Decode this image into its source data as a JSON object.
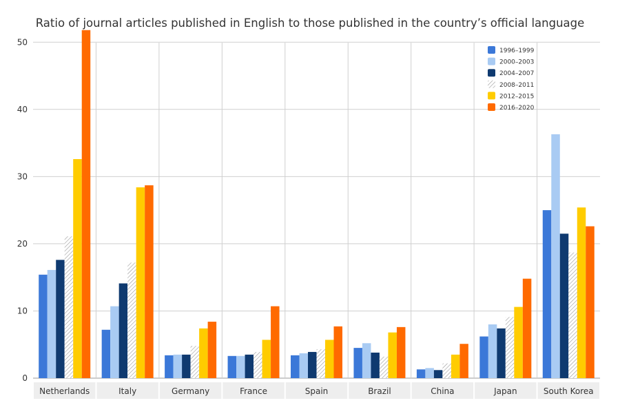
{
  "chart_data": {
    "type": "bar",
    "title": "Ratio of journal articles published in English to those published in the country’s official language",
    "xlabel": "",
    "ylabel": "",
    "ylim": [
      0,
      53
    ],
    "yticks": [
      "0",
      "10",
      "20",
      "30",
      "40",
      "50"
    ],
    "grid": true,
    "legend_position": "top-right",
    "categories": [
      "Netherlands",
      "Italy",
      "Germany",
      "France",
      "Spain",
      "Brazil",
      "China",
      "Japan",
      "South Korea"
    ],
    "series": [
      {
        "name": "1996–1999",
        "color": "#3b78d8",
        "pattern": "solid",
        "values": [
          15.4,
          7.2,
          3.4,
          3.3,
          3.4,
          4.5,
          1.3,
          6.2,
          25.0
        ]
      },
      {
        "name": "2000–2003",
        "color": "#a9cbf3",
        "pattern": "solid",
        "values": [
          16.1,
          10.7,
          3.5,
          3.3,
          3.7,
          5.2,
          1.5,
          8.0,
          36.3
        ]
      },
      {
        "name": "2004–2007",
        "color": "#0f3a70",
        "pattern": "solid",
        "values": [
          17.6,
          14.1,
          3.5,
          3.5,
          3.9,
          3.8,
          1.2,
          7.4,
          21.5
        ]
      },
      {
        "name": "2008–2011",
        "color": "#9a9a9a",
        "pattern": "hatched",
        "values": [
          21.1,
          17.2,
          4.8,
          3.9,
          4.3,
          3.2,
          2.2,
          9.1,
          18.7
        ]
      },
      {
        "name": "2012–2015",
        "color": "#ffcc00",
        "pattern": "solid",
        "values": [
          32.6,
          28.4,
          7.4,
          5.7,
          5.7,
          6.8,
          3.5,
          10.6,
          25.4
        ]
      },
      {
        "name": "2016–2020",
        "color": "#ff6a00",
        "pattern": "solid",
        "values": [
          51.8,
          28.7,
          8.4,
          10.7,
          7.7,
          7.6,
          5.1,
          14.8,
          22.6
        ]
      }
    ]
  }
}
